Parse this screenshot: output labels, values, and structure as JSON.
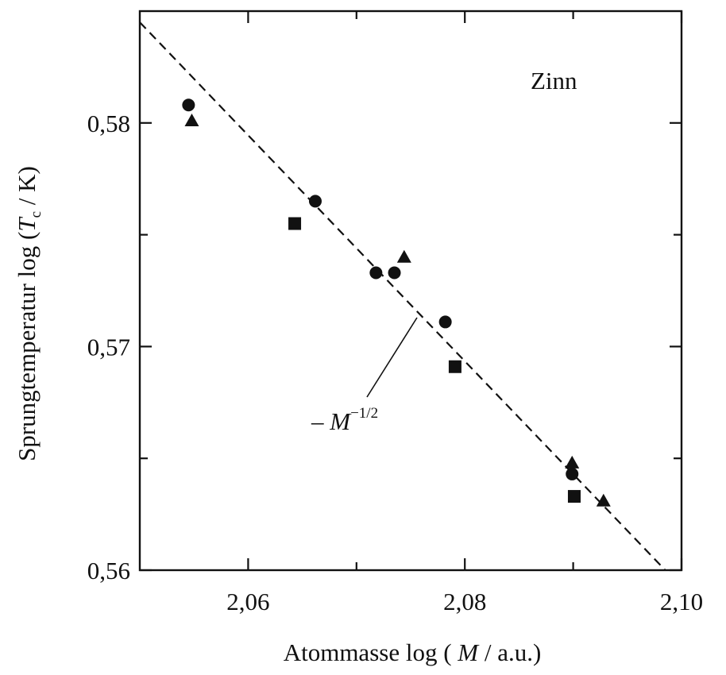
{
  "chart_data": {
    "type": "scatter",
    "title": "",
    "xlabel": {
      "prefix": "Atommasse  log ( ",
      "variable": "M",
      "suffix": " / a.u.)"
    },
    "ylabel": {
      "prefix": "Sprungtemperatur  log (",
      "variable": "T",
      "subscript": "c",
      "suffix": " / K)"
    },
    "xlim": [
      2.05,
      2.1
    ],
    "ylim": [
      0.56,
      0.585
    ],
    "xticks": [
      {
        "value": 2.06,
        "label": "2,06"
      },
      {
        "value": 2.08,
        "label": "2,08"
      },
      {
        "value": 2.1,
        "label": "2,10"
      }
    ],
    "xminor": [
      2.05,
      2.07,
      2.09
    ],
    "yticks": [
      {
        "value": 0.56,
        "label": "0,56"
      },
      {
        "value": 0.57,
        "label": "0,57"
      },
      {
        "value": 0.58,
        "label": "0,58"
      }
    ],
    "yminor": [
      0.565,
      0.575
    ],
    "annotation_label": "Zinn",
    "fit_line": {
      "label": {
        "prefix": "– ",
        "variable": "M",
        "exponent": "−1/2"
      },
      "x": [
        2.05,
        2.0985
      ],
      "y": [
        0.5845,
        0.56
      ],
      "style": "dashed"
    },
    "series": [
      {
        "marker": "circle",
        "points": [
          {
            "x": 2.0545,
            "y": 0.5808
          },
          {
            "x": 2.0662,
            "y": 0.5765
          },
          {
            "x": 2.0718,
            "y": 0.5733
          },
          {
            "x": 2.0735,
            "y": 0.5733
          },
          {
            "x": 2.0782,
            "y": 0.5711
          },
          {
            "x": 2.0899,
            "y": 0.5643
          }
        ]
      },
      {
        "marker": "square",
        "points": [
          {
            "x": 2.0643,
            "y": 0.5755
          },
          {
            "x": 2.0791,
            "y": 0.5691
          },
          {
            "x": 2.0901,
            "y": 0.5633
          }
        ]
      },
      {
        "marker": "triangle",
        "points": [
          {
            "x": 2.0548,
            "y": 0.5801
          },
          {
            "x": 2.0744,
            "y": 0.574
          },
          {
            "x": 2.0899,
            "y": 0.5648
          },
          {
            "x": 2.0928,
            "y": 0.5631
          }
        ]
      }
    ]
  }
}
